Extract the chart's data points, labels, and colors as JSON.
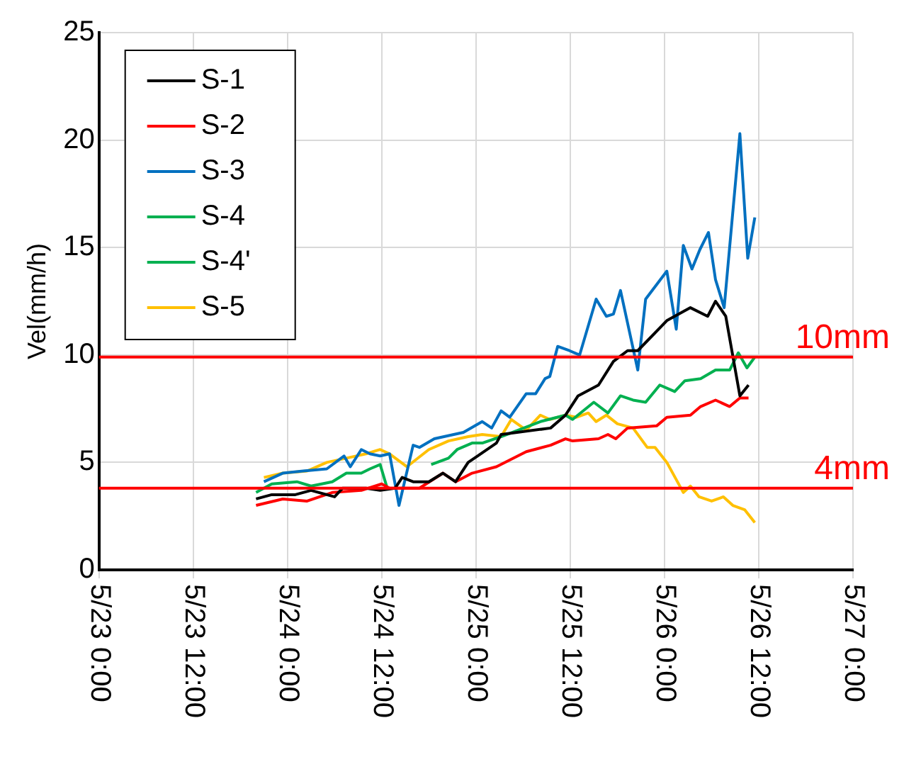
{
  "chart_data": {
    "type": "line",
    "ylabel": "Vel(mm/h)",
    "xlim": [
      "--05-23T00:00",
      "--05-27T00:00"
    ],
    "xticks": [
      {
        "value": "--05-23T00:00",
        "label": "5/23 0:00"
      },
      {
        "value": "--05-23T12:00",
        "label": "5/23 12:00"
      },
      {
        "value": "--05-24T00:00",
        "label": "5/24 0:00"
      },
      {
        "value": "--05-24T12:00",
        "label": "5/24 12:00"
      },
      {
        "value": "--05-25T00:00",
        "label": "5/25 0:00"
      },
      {
        "value": "--05-25T12:00",
        "label": "5/25 12:00"
      },
      {
        "value": "--05-26T00:00",
        "label": "5/26 0:00"
      },
      {
        "value": "--05-26T12:00",
        "label": "5/26 12:00"
      },
      {
        "value": "--05-27T00:00",
        "label": "5/27 0:00"
      }
    ],
    "ylim": [
      0,
      25
    ],
    "yticks": [
      0,
      5,
      10,
      15,
      20,
      25
    ],
    "grid": true,
    "legend": "top left",
    "marker": "none",
    "line_style": "solid",
    "ref_lines": [
      {
        "axis": "y",
        "value": 9.9,
        "label": "10mm",
        "color": "#ff0000"
      },
      {
        "axis": "y",
        "value": 3.8,
        "label": "4mm",
        "color": "#ff0000"
      }
    ],
    "series": [
      {
        "name": "S-1",
        "color": "#000000",
        "x": [
          "--05-23T20:00",
          "--05-23T22:00",
          "--05-24T01:00",
          "--05-24T03:00",
          "--05-24T06:00",
          "--05-24T07:00",
          "--05-24T10:00",
          "--05-24T11:48",
          "--05-24T13:42",
          "--05-24T14:36",
          "--05-24T16:00",
          "--05-24T18:00",
          "--05-24T19:48",
          "--05-24T21:24",
          "--05-24T23:00",
          "--05-25T00:12",
          "--05-25T02:36",
          "--05-25T03:12",
          "--05-25T09:30",
          "--05-25T11:24",
          "--05-25T13:00",
          "--05-25T15:36",
          "--05-25T17:30",
          "--05-25T19:18",
          "--05-25T20:36",
          "--05-26T00:18",
          "--05-26T03:18",
          "--05-26T05:30",
          "--05-26T06:30",
          "--05-26T07:48",
          "--05-26T09:36",
          "--05-26T10:42"
        ],
        "values": [
          3.3,
          3.5,
          3.5,
          3.7,
          3.4,
          3.8,
          3.8,
          3.7,
          3.8,
          4.3,
          4.1,
          4.1,
          4.5,
          4.1,
          5.0,
          5.3,
          5.9,
          6.3,
          6.6,
          7.2,
          8.1,
          8.6,
          9.7,
          10.2,
          10.2,
          11.6,
          12.2,
          11.8,
          12.5,
          11.8,
          8.1,
          8.6
        ]
      },
      {
        "name": "S-2",
        "color": "#ff0000",
        "x": [
          "--05-23T20:00",
          "--05-23T23:24",
          "--05-24T02:30",
          "--05-24T05:42",
          "--05-24T09:24",
          "--05-24T12:00",
          "--05-24T13:00",
          "--05-24T15:00",
          "--05-24T16:48",
          "--05-24T19:48",
          "--05-24T21:24",
          "--05-24T23:30",
          "--05-25T02:36",
          "--05-25T06:24",
          "--05-25T09:30",
          "--05-25T11:24",
          "--05-25T12:18",
          "--05-25T15:36",
          "--05-25T16:48",
          "--05-25T17:48",
          "--05-25T19:18",
          "--05-25T23:00",
          "--05-26T00:18",
          "--05-26T03:18",
          "--05-26T04:36",
          "--05-26T06:30",
          "--05-26T08:18",
          "--05-26T09:36",
          "--05-26T10:42"
        ],
        "values": [
          3.0,
          3.3,
          3.2,
          3.6,
          3.7,
          4.0,
          3.8,
          3.8,
          3.8,
          4.5,
          4.1,
          4.5,
          4.8,
          5.5,
          5.8,
          6.1,
          6.0,
          6.1,
          6.3,
          6.1,
          6.6,
          6.7,
          7.1,
          7.2,
          7.6,
          7.9,
          7.6,
          8.0,
          8.0
        ]
      },
      {
        "name": "S-3",
        "color": "#0070c0",
        "x": [
          "--05-23T21:00",
          "--05-23T23:24",
          "--05-24T02:00",
          "--05-24T05:00",
          "--05-24T07:12",
          "--05-24T08:00",
          "--05-24T09:24",
          "--05-24T10:30",
          "--05-24T11:48",
          "--05-24T13:00",
          "--05-24T14:12",
          "--05-24T16:00",
          "--05-24T16:48",
          "--05-24T18:42",
          "--05-24T22:24",
          "--05-25T00:48",
          "--05-25T02:00",
          "--05-25T03:12",
          "--05-25T04:18",
          "--05-25T06:24",
          "--05-25T07:36",
          "--05-25T08:48",
          "--05-25T09:24",
          "--05-25T10:24",
          "--05-25T11:54",
          "--05-25T13:12",
          "--05-25T15:18",
          "--05-25T16:36",
          "--05-25T17:30",
          "--05-25T18:24",
          "--05-25T20:36",
          "--05-25T21:36",
          "--05-26T00:18",
          "--05-26T01:30",
          "--05-26T02:24",
          "--05-26T03:30",
          "--05-26T04:30",
          "--05-26T05:36",
          "--05-26T06:30",
          "--05-26T07:36",
          "--05-26T09:36",
          "--05-26T10:36",
          "--05-26T11:30"
        ],
        "values": [
          4.1,
          4.5,
          4.6,
          4.7,
          5.3,
          4.8,
          5.6,
          5.4,
          5.3,
          5.4,
          3.0,
          5.8,
          5.7,
          6.1,
          6.4,
          6.9,
          6.6,
          7.4,
          7.1,
          8.2,
          8.2,
          8.9,
          9.0,
          10.4,
          10.2,
          10.0,
          12.6,
          11.8,
          11.9,
          13.0,
          9.3,
          12.6,
          13.9,
          11.2,
          15.1,
          14.0,
          14.9,
          15.7,
          13.5,
          12.2,
          20.3,
          14.5,
          16.4
        ]
      },
      {
        "name": "S-4",
        "color": "#00b050",
        "x": [
          "--05-23T20:00",
          "--05-23T22:00",
          "--05-24T01:12",
          "--05-24T03:00",
          "--05-24T05:42",
          "--05-24T07:30",
          "--05-24T09:24",
          "--05-24T10:30",
          "--05-24T11:48",
          "--05-24T12:42"
        ],
        "values": [
          3.6,
          4.0,
          4.1,
          3.9,
          4.1,
          4.5,
          4.5,
          4.7,
          4.9,
          3.8
        ]
      },
      {
        "name": "S-4'",
        "color": "#00b050",
        "x": [
          "--05-24T18:18",
          "--05-24T20:30",
          "--05-24T21:36",
          "--05-24T23:30",
          "--05-25T00:48",
          "--05-25T03:12",
          "--05-25T08:12",
          "--05-25T11:24",
          "--05-25T12:18",
          "--05-25T15:00",
          "--05-25T16:48",
          "--05-25T18:24",
          "--05-25T20:00",
          "--05-25T21:36",
          "--05-25T23:24",
          "--05-26T01:18",
          "--05-26T02:36",
          "--05-26T04:36",
          "--05-26T06:30",
          "--05-26T08:18",
          "--05-26T09:24",
          "--05-26T10:30",
          "--05-26T11:30"
        ],
        "values": [
          4.9,
          5.2,
          5.6,
          5.9,
          5.9,
          6.2,
          6.9,
          7.2,
          7.0,
          7.8,
          7.3,
          8.1,
          7.9,
          7.8,
          8.6,
          8.3,
          8.8,
          8.9,
          9.3,
          9.3,
          10.1,
          9.4,
          9.9
        ]
      },
      {
        "name": "S-5",
        "color": "#ffc000",
        "x": [
          "--05-23T21:00",
          "--05-23T23:24",
          "--05-24T02:30",
          "--05-24T05:00",
          "--05-24T07:30",
          "--05-24T10:00",
          "--05-24T11:48",
          "--05-24T13:00",
          "--05-24T15:12",
          "--05-24T18:00",
          "--05-24T20:30",
          "--05-24T23:00",
          "--05-25T00:48",
          "--05-25T03:12",
          "--05-25T04:30",
          "--05-25T06:24",
          "--05-25T08:12",
          "--05-25T09:24",
          "--05-25T11:24",
          "--05-25T12:48",
          "--05-25T14:18",
          "--05-25T15:18",
          "--05-25T16:36",
          "--05-25T18:00",
          "--05-25T20:00",
          "--05-25T21:48",
          "--05-25T22:48",
          "--05-26T00:18",
          "--05-26T02:24",
          "--05-26T03:18",
          "--05-26T04:24",
          "--05-26T06:00",
          "--05-26T07:30",
          "--05-26T08:42",
          "--05-26T10:12",
          "--05-26T11:30"
        ],
        "values": [
          4.3,
          4.5,
          4.6,
          5.0,
          5.2,
          5.4,
          5.6,
          5.4,
          4.8,
          5.6,
          6.0,
          6.2,
          6.3,
          6.2,
          7.0,
          6.5,
          7.2,
          7.0,
          7.2,
          7.1,
          7.3,
          6.9,
          7.2,
          6.8,
          6.6,
          5.7,
          5.7,
          5.0,
          3.6,
          3.9,
          3.4,
          3.2,
          3.4,
          3.0,
          2.8,
          2.2
        ]
      }
    ]
  }
}
